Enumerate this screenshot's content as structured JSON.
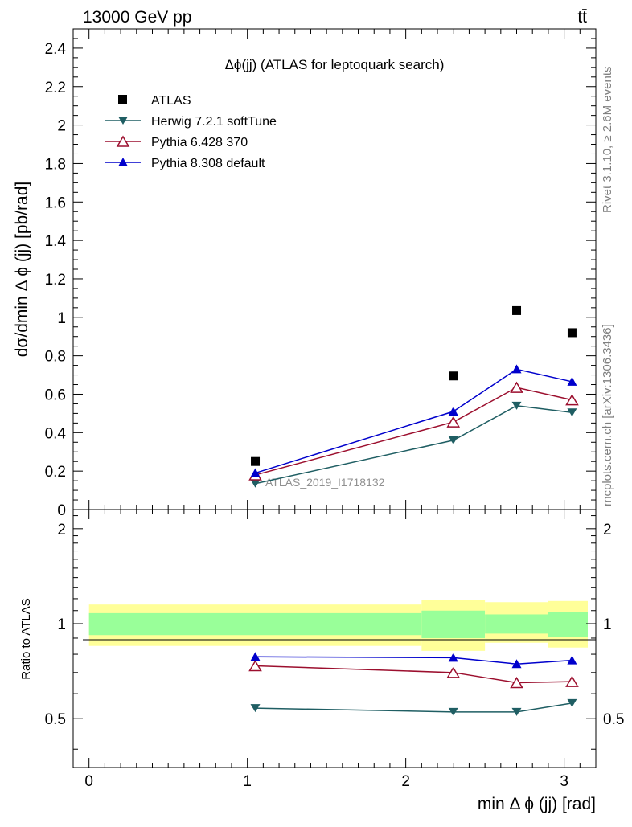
{
  "header": {
    "energy_label": "13000 GeV pp",
    "process_label": "tt̄"
  },
  "side": {
    "rivet": "Rivet 3.1.10, ≥ 2.6M events",
    "mcplots": "mcplots.cern.ch [arXiv:1306.3436]"
  },
  "colors": {
    "atlas": "#000000",
    "herwig": "#1f5e63",
    "pythia6": "#9c0f2e",
    "pythia8": "#0000cc",
    "band_inner": "#99ff99",
    "band_outer": "#ffff99"
  },
  "chart_data": [
    {
      "type": "scatter",
      "title": "Δϕ(jj) (ATLAS for leptoquark search)",
      "ylabel": "dσ/dmin Δ ϕ (jj) [pb/rad]",
      "xlim": [
        -0.1,
        3.2
      ],
      "ylim": [
        0,
        2.5
      ],
      "yticks": [
        "0",
        "0.2",
        "0.4",
        "0.6",
        "0.8",
        "1",
        "1.2",
        "1.4",
        "1.6",
        "1.8",
        "2",
        "2.2",
        "2.4"
      ],
      "watermark": "ATLAS_2019_I1718132",
      "legend_position": "top-left",
      "x": [
        1.05,
        2.3,
        2.7,
        3.05
      ],
      "series": [
        {
          "name": "ATLAS",
          "marker": "square",
          "values": [
            0.25,
            0.695,
            1.035,
            0.92
          ]
        },
        {
          "name": "Herwig 7.2.1 softTune",
          "marker": "triangle-down",
          "values": [
            0.135,
            0.36,
            0.54,
            0.505
          ]
        },
        {
          "name": "Pythia 6.428 370",
          "marker": "triangle-up-open",
          "values": [
            0.18,
            0.455,
            0.635,
            0.57
          ]
        },
        {
          "name": "Pythia 8.308 default",
          "marker": "triangle-up",
          "values": [
            0.19,
            0.51,
            0.73,
            0.665
          ]
        }
      ]
    },
    {
      "type": "line",
      "xlabel": "min Δ ϕ (jj) [rad]",
      "ylabel": "Ratio to ATLAS",
      "xlim": [
        -0.1,
        3.2
      ],
      "ylim": [
        0.35,
        2.3
      ],
      "xticks": [
        "0",
        "1",
        "2",
        "3"
      ],
      "yticks": [
        "0.5",
        "1",
        "2"
      ],
      "bands": [
        {
          "x": [
            0,
            2.1
          ],
          "inner": [
            0.92,
            1.08
          ],
          "outer": [
            0.85,
            1.15
          ]
        },
        {
          "x": [
            2.1,
            2.5
          ],
          "inner": [
            0.9,
            1.1
          ],
          "outer": [
            0.82,
            1.19
          ]
        },
        {
          "x": [
            2.5,
            2.9
          ],
          "inner": [
            0.93,
            1.07
          ],
          "outer": [
            0.87,
            1.17
          ]
        },
        {
          "x": [
            2.9,
            3.2
          ],
          "inner": [
            0.91,
            1.09
          ],
          "outer": [
            0.84,
            1.18
          ]
        }
      ],
      "x": [
        1.05,
        2.3,
        2.7,
        3.05
      ],
      "series": [
        {
          "name": "Herwig 7.2.1 softTune",
          "values": [
            0.54,
            0.525,
            0.525,
            0.56
          ]
        },
        {
          "name": "Pythia 6.428 370",
          "values": [
            0.735,
            0.7,
            0.65,
            0.655
          ]
        },
        {
          "name": "Pythia 8.308 default",
          "values": [
            0.785,
            0.78,
            0.745,
            0.765
          ]
        }
      ]
    }
  ]
}
